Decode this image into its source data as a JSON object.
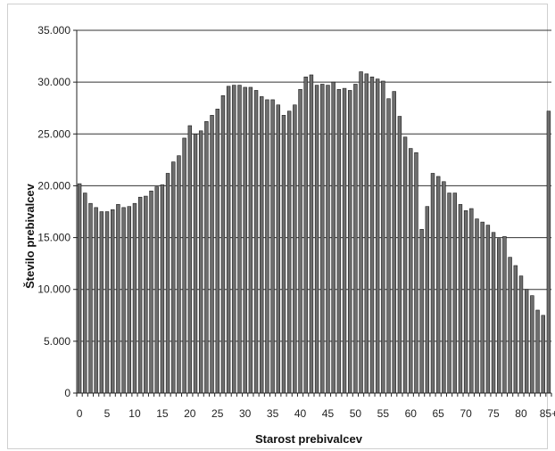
{
  "chart_data": {
    "type": "bar",
    "title": "",
    "xlabel": "Starost prebivalcev",
    "ylabel": "Število prebivalcev",
    "ylim": [
      0,
      35000
    ],
    "grid": true,
    "legend": "none",
    "bar_color": "#6e6e6e",
    "bar_edge_color": "#1a1a1a",
    "grid_color": "#333333",
    "y_ticks": [
      0,
      5000,
      10000,
      15000,
      20000,
      25000,
      30000,
      35000
    ],
    "y_tick_labels": [
      "0",
      "5.000",
      "10.000",
      "15.000",
      "20.000",
      "25.000",
      "30.000",
      "35.000"
    ],
    "x_tick_labels": [
      "0",
      "5",
      "10",
      "15",
      "20",
      "25",
      "30",
      "35",
      "40",
      "45",
      "50",
      "55",
      "60",
      "65",
      "70",
      "75",
      "80",
      "85+"
    ],
    "categories": [
      "0",
      "1",
      "2",
      "3",
      "4",
      "5",
      "6",
      "7",
      "8",
      "9",
      "10",
      "11",
      "12",
      "13",
      "14",
      "15",
      "16",
      "17",
      "18",
      "19",
      "20",
      "21",
      "22",
      "23",
      "24",
      "25",
      "26",
      "27",
      "28",
      "29",
      "30",
      "31",
      "32",
      "33",
      "34",
      "35",
      "36",
      "37",
      "38",
      "39",
      "40",
      "41",
      "42",
      "43",
      "44",
      "45",
      "46",
      "47",
      "48",
      "49",
      "50",
      "51",
      "52",
      "53",
      "54",
      "55",
      "56",
      "57",
      "58",
      "59",
      "60",
      "61",
      "62",
      "63",
      "64",
      "65",
      "66",
      "67",
      "68",
      "69",
      "70",
      "71",
      "72",
      "73",
      "74",
      "75",
      "76",
      "77",
      "78",
      "79",
      "80",
      "81",
      "82",
      "83",
      "84",
      "85+"
    ],
    "values": [
      20200,
      19300,
      18300,
      17900,
      17500,
      17500,
      17700,
      18200,
      17900,
      18000,
      18300,
      18900,
      19000,
      19500,
      19900,
      20100,
      21200,
      22300,
      22900,
      24600,
      25800,
      25000,
      25300,
      26200,
      26800,
      27400,
      28700,
      29600,
      29700,
      29700,
      29500,
      29500,
      29200,
      28600,
      28300,
      28300,
      27800,
      26800,
      27200,
      27800,
      29300,
      30500,
      30700,
      29700,
      29800,
      29700,
      30000,
      29300,
      29400,
      29200,
      29800,
      31000,
      30800,
      30500,
      30300,
      30100,
      28400,
      29100,
      26700,
      24700,
      23600,
      23200,
      15800,
      18000,
      21200,
      20900,
      20400,
      19300,
      19300,
      18200,
      17600,
      17800,
      16800,
      16500,
      16200,
      15500,
      14900,
      15100,
      13100,
      12300,
      11300,
      10000,
      9400,
      8000,
      7500,
      27200
    ]
  }
}
